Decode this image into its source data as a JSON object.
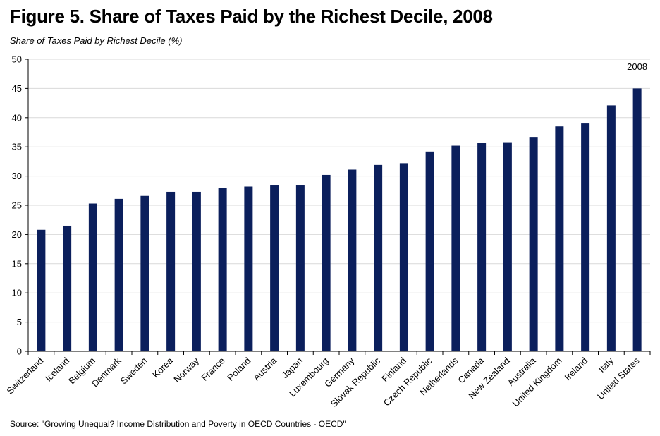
{
  "header": {
    "title": "Figure 5. Share of Taxes Paid by the Richest Decile, 2008",
    "subtitle": "Share of Taxes Paid by Richest Decile (%)"
  },
  "footer": {
    "source": "Source: \"Growing Unequal? Income Distribution and Poverty in OECD Countries - OECD\""
  },
  "colors": {
    "bar": "#0b1f5c",
    "grid": "#d9d9d9",
    "axis": "#000000"
  },
  "chart_data": {
    "type": "bar",
    "title": "Figure 5. Share of Taxes Paid by the Richest Decile, 2008",
    "ylabel": "Share of Taxes Paid by Richest Decile (%)",
    "xlabel": "",
    "ylim": [
      0,
      50
    ],
    "yticks": [
      0,
      5,
      10,
      15,
      20,
      25,
      30,
      35,
      40,
      45,
      50
    ],
    "grid": true,
    "annotation": "2008",
    "categories": [
      "Switzerland",
      "Iceland",
      "Belgium",
      "Denmark",
      "Sweden",
      "Korea",
      "Norway",
      "France",
      "Poland",
      "Austria",
      "Japan",
      "Luxembourg",
      "Germany",
      "Slovak Republic",
      "Finland",
      "Czech Republic",
      "Netherlands",
      "Canada",
      "New Zealand",
      "Australia",
      "United Kingdom",
      "Ireland",
      "Italy",
      "United States"
    ],
    "values": [
      20.8,
      21.5,
      25.3,
      26.1,
      26.6,
      27.3,
      27.3,
      28.0,
      28.2,
      28.5,
      28.5,
      30.2,
      31.1,
      31.9,
      32.2,
      34.2,
      35.2,
      35.7,
      35.8,
      36.7,
      38.5,
      39.0,
      42.1,
      45.0
    ]
  }
}
